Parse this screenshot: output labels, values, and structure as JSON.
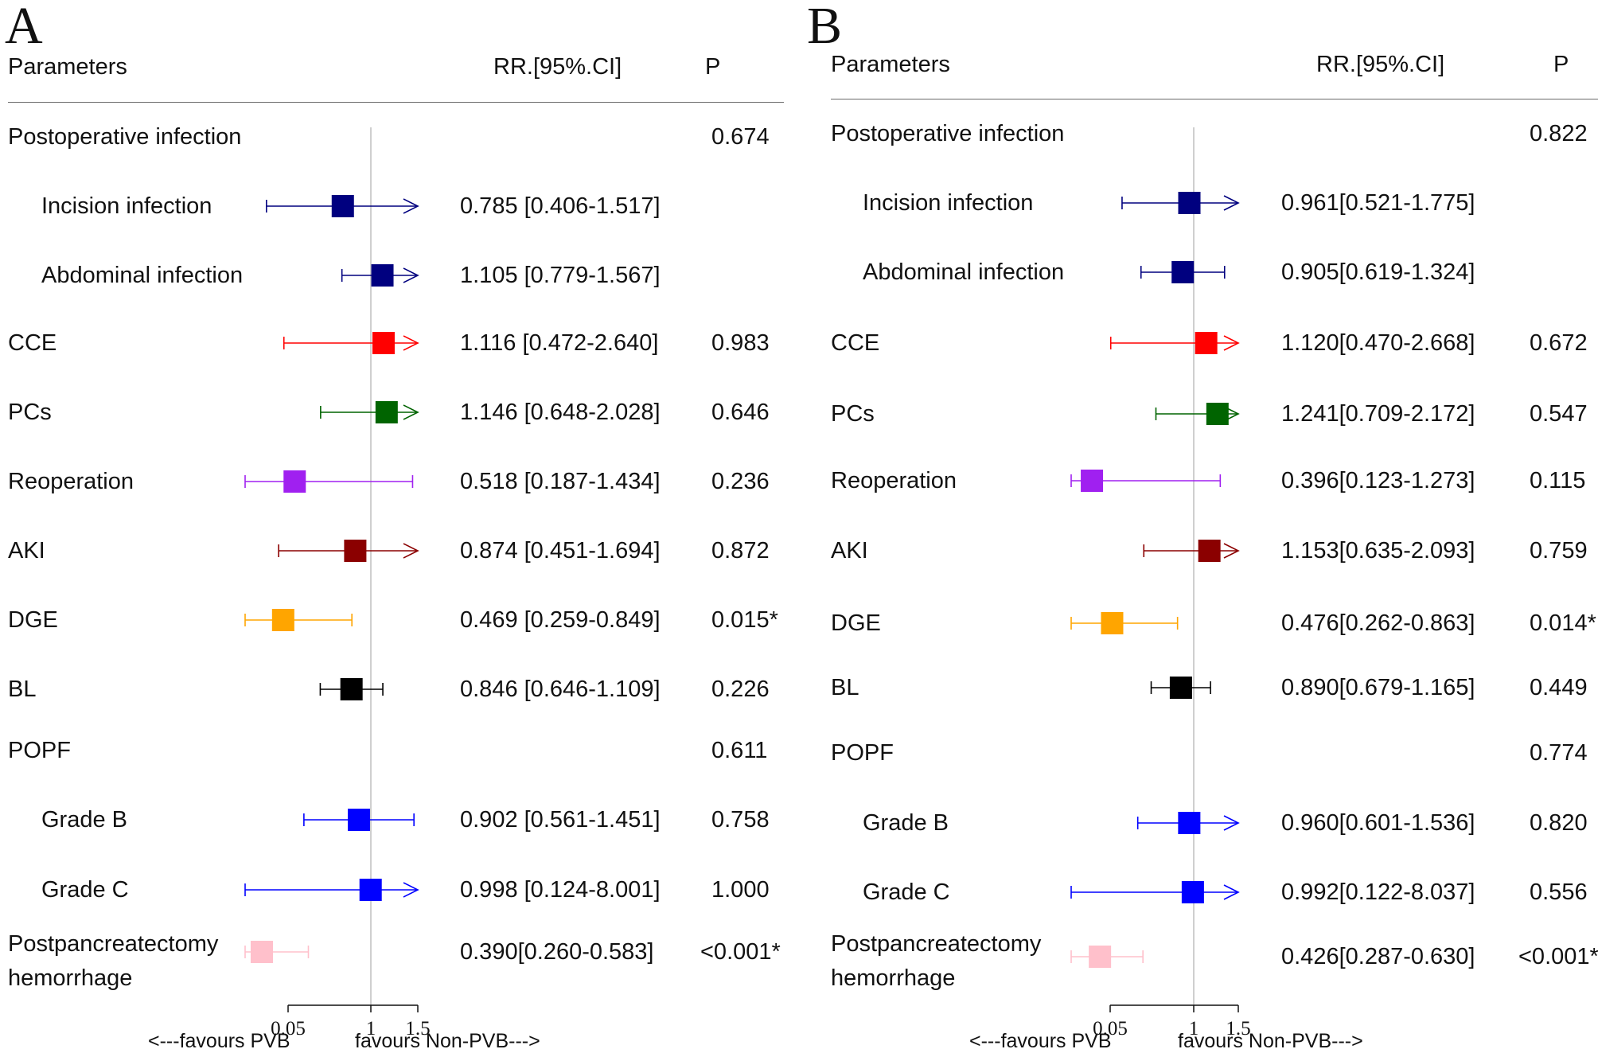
{
  "figure": {
    "x_axis": {
      "ticks": [
        "0.05",
        "1",
        "1.5"
      ]
    },
    "favours_left": "<---favours PVB",
    "favours_right": "favours Non-PVB--->",
    "colors": {
      "navy": "#00007f",
      "red": "#ff0000",
      "green": "#006400",
      "purple": "#a020f0",
      "darkred": "#8b0000",
      "orange": "#ffa500",
      "black": "#000000",
      "blue": "#0000ff",
      "pink": "#ffc0cb"
    }
  },
  "panels": [
    {
      "letter": "A",
      "headers": {
        "parameters": "Parameters",
        "rr": "RR.[95%.CI]",
        "p": "P"
      },
      "rows": [
        {
          "label": "Postoperative infection",
          "indent": false,
          "ci_text": "",
          "p": "0.674"
        },
        {
          "label": "Incision infection",
          "indent": true,
          "ci_text": "0.785 [0.406-1.517]",
          "p": "",
          "rr": 0.785,
          "lo": 0.406,
          "hi": 1.517,
          "color": "navy"
        },
        {
          "label": "Abdominal infection",
          "indent": true,
          "ci_text": "1.105 [0.779-1.567]",
          "p": "",
          "rr": 1.105,
          "lo": 0.779,
          "hi": 1.567,
          "color": "navy"
        },
        {
          "label": "CCE",
          "indent": false,
          "ci_text": "1.116 [0.472-2.640]",
          "p": "0.983",
          "rr": 1.116,
          "lo": 0.472,
          "hi": 2.64,
          "color": "red"
        },
        {
          "label": "PCs",
          "indent": false,
          "ci_text": "1.146 [0.648-2.028]",
          "p": "0.646",
          "rr": 1.146,
          "lo": 0.648,
          "hi": 2.028,
          "color": "green"
        },
        {
          "label": "Reoperation",
          "indent": false,
          "ci_text": "0.518 [0.187-1.434]",
          "p": "0.236",
          "rr": 0.518,
          "lo": 0.187,
          "hi": 1.434,
          "color": "purple"
        },
        {
          "label": "AKI",
          "indent": false,
          "ci_text": "0.874 [0.451-1.694]",
          "p": "0.872",
          "rr": 0.874,
          "lo": 0.451,
          "hi": 1.694,
          "color": "darkred"
        },
        {
          "label": "DGE",
          "indent": false,
          "ci_text": "0.469 [0.259-0.849]",
          "p": "0.015*",
          "rr": 0.469,
          "lo": 0.259,
          "hi": 0.849,
          "color": "orange"
        },
        {
          "label": "BL",
          "indent": false,
          "ci_text": "0.846 [0.646-1.109]",
          "p": "0.226",
          "rr": 0.846,
          "lo": 0.646,
          "hi": 1.109,
          "color": "black"
        },
        {
          "label": "POPF",
          "indent": false,
          "ci_text": "",
          "p": "0.611"
        },
        {
          "label": "Grade B",
          "indent": true,
          "ci_text": "0.902 [0.561-1.451]",
          "p": "0.758",
          "rr": 0.902,
          "lo": 0.561,
          "hi": 1.451,
          "color": "blue"
        },
        {
          "label": "Grade C",
          "indent": true,
          "ci_text": "0.998 [0.124-8.001]",
          "p": "1.000",
          "rr": 0.998,
          "lo": 0.124,
          "hi": 8.001,
          "color": "blue"
        },
        {
          "label": "Postpancreatectomy",
          "label2": "hemorrhage",
          "indent": false,
          "ci_text": "0.390[0.260-0.583]",
          "p": "<0.001*",
          "rr": 0.39,
          "lo": 0.26,
          "hi": 0.583,
          "color": "pink"
        }
      ]
    },
    {
      "letter": "B",
      "headers": {
        "parameters": "Parameters",
        "rr": "RR.[95%.CI]",
        "p": "P"
      },
      "rows": [
        {
          "label": "Postoperative infection",
          "indent": false,
          "ci_text": "",
          "p": "0.822"
        },
        {
          "label": "Incision infection",
          "indent": true,
          "ci_text": "0.961[0.521-1.775]",
          "p": "",
          "rr": 0.961,
          "lo": 0.521,
          "hi": 1.775,
          "color": "navy"
        },
        {
          "label": "Abdominal infection",
          "indent": true,
          "ci_text": "0.905[0.619-1.324]",
          "p": "",
          "rr": 0.905,
          "lo": 0.619,
          "hi": 1.324,
          "color": "navy"
        },
        {
          "label": "CCE",
          "indent": false,
          "ci_text": "1.120[0.470-2.668]",
          "p": "0.672",
          "rr": 1.12,
          "lo": 0.47,
          "hi": 2.668,
          "color": "red"
        },
        {
          "label": "PCs",
          "indent": false,
          "ci_text": "1.241[0.709-2.172]",
          "p": "0.547",
          "rr": 1.241,
          "lo": 0.709,
          "hi": 2.172,
          "color": "green"
        },
        {
          "label": "Reoperation",
          "indent": false,
          "ci_text": "0.396[0.123-1.273]",
          "p": "0.115",
          "rr": 0.396,
          "lo": 0.123,
          "hi": 1.273,
          "color": "purple"
        },
        {
          "label": "AKI",
          "indent": false,
          "ci_text": "1.153[0.635-2.093]",
          "p": "0.759",
          "rr": 1.153,
          "lo": 0.635,
          "hi": 2.093,
          "color": "darkred"
        },
        {
          "label": "DGE",
          "indent": false,
          "ci_text": "0.476[0.262-0.863]",
          "p": "0.014*",
          "rr": 0.476,
          "lo": 0.262,
          "hi": 0.863,
          "color": "orange"
        },
        {
          "label": "BL",
          "indent": false,
          "ci_text": "0.890[0.679-1.165]",
          "p": "0.449",
          "rr": 0.89,
          "lo": 0.679,
          "hi": 1.165,
          "color": "black"
        },
        {
          "label": "POPF",
          "indent": false,
          "ci_text": "",
          "p": "0.774"
        },
        {
          "label": "Grade B",
          "indent": true,
          "ci_text": "0.960[0.601-1.536]",
          "p": "0.820",
          "rr": 0.96,
          "lo": 0.601,
          "hi": 1.536,
          "color": "blue"
        },
        {
          "label": "Grade C",
          "indent": true,
          "ci_text": "0.992[0.122-8.037]",
          "p": "0.556",
          "rr": 0.992,
          "lo": 0.122,
          "hi": 8.037,
          "color": "blue"
        },
        {
          "label": "Postpancreatectomy",
          "label2": "hemorrhage",
          "indent": false,
          "ci_text": "0.426[0.287-0.630]",
          "p": "<0.001*",
          "rr": 0.426,
          "lo": 0.287,
          "hi": 0.63,
          "color": "pink"
        }
      ]
    }
  ],
  "chart_data": [
    {
      "type": "forest",
      "title": "A",
      "xlabel_left": "<---favours PVB",
      "xlabel_right": "favours Non-PVB--->",
      "x_ticks": [
        "0.05",
        "1",
        "1.5"
      ],
      "categories": [
        "Incision infection",
        "Abdominal infection",
        "CCE",
        "PCs",
        "Reoperation",
        "AKI",
        "DGE",
        "BL",
        "Grade B",
        "Grade C",
        "Postpancreatectomy hemorrhage"
      ],
      "rr": [
        0.785,
        1.105,
        1.116,
        1.146,
        0.518,
        0.874,
        0.469,
        0.846,
        0.902,
        0.998,
        0.39
      ],
      "lower": [
        0.406,
        0.779,
        0.472,
        0.648,
        0.187,
        0.451,
        0.259,
        0.646,
        0.561,
        0.124,
        0.26
      ],
      "upper": [
        1.517,
        1.567,
        2.64,
        2.028,
        1.434,
        1.694,
        0.849,
        1.109,
        1.451,
        8.001,
        0.583
      ]
    },
    {
      "type": "forest",
      "title": "B",
      "xlabel_left": "<---favours PVB",
      "xlabel_right": "favours Non-PVB--->",
      "x_ticks": [
        "0.05",
        "1",
        "1.5"
      ],
      "categories": [
        "Incision infection",
        "Abdominal infection",
        "CCE",
        "PCs",
        "Reoperation",
        "AKI",
        "DGE",
        "BL",
        "Grade B",
        "Grade C",
        "Postpancreatectomy hemorrhage"
      ],
      "rr": [
        0.961,
        0.905,
        1.12,
        1.241,
        0.396,
        1.153,
        0.476,
        0.89,
        0.96,
        0.992,
        0.426
      ],
      "lower": [
        0.521,
        0.619,
        0.47,
        0.709,
        0.123,
        0.635,
        0.262,
        0.679,
        0.601,
        0.122,
        0.287
      ],
      "upper": [
        1.775,
        1.324,
        2.668,
        2.172,
        1.273,
        2.093,
        0.863,
        1.165,
        1.536,
        8.037,
        0.63
      ]
    }
  ]
}
